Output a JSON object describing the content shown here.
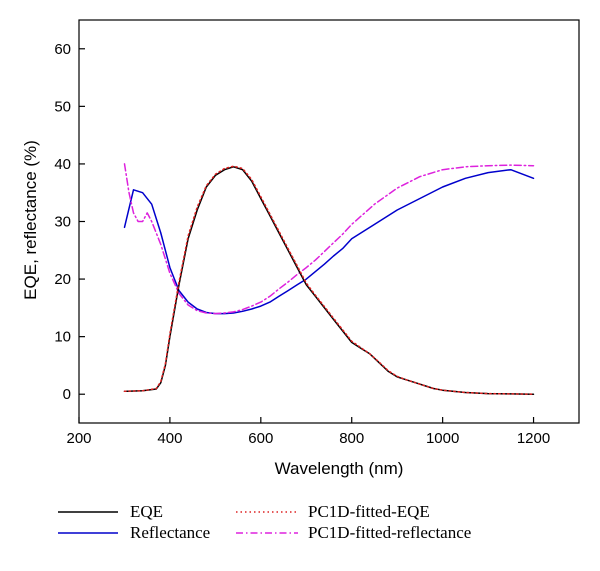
{
  "chart_data": {
    "type": "line",
    "title": "",
    "xlabel": "Wavelength (nm)",
    "ylabel": "EQE, reflectance (%)",
    "xlim": [
      200,
      1300
    ],
    "ylim": [
      -5,
      65
    ],
    "x_ticks": [
      200,
      400,
      600,
      800,
      1000,
      1200
    ],
    "y_ticks": [
      0,
      10,
      20,
      30,
      40,
      50,
      60
    ],
    "grid": false,
    "legend_position": "bottom",
    "series": [
      {
        "name": "EQE",
        "color": "#000000",
        "style": "solid",
        "x": [
          300,
          340,
          370,
          380,
          390,
          400,
          420,
          440,
          460,
          480,
          500,
          520,
          540,
          560,
          580,
          600,
          620,
          640,
          660,
          680,
          700,
          720,
          740,
          760,
          780,
          800,
          820,
          840,
          860,
          880,
          900,
          920,
          940,
          960,
          980,
          1000,
          1050,
          1100,
          1150,
          1200
        ],
        "y": [
          0.5,
          0.6,
          0.9,
          2,
          5,
          10,
          19,
          27,
          32,
          36,
          38,
          39,
          39.5,
          39,
          37,
          34,
          31,
          28,
          25,
          22,
          19,
          17,
          15,
          13,
          11,
          9,
          8,
          7,
          5.5,
          4,
          3,
          2.5,
          2,
          1.5,
          1,
          0.7,
          0.3,
          0.1,
          0.05,
          0
        ]
      },
      {
        "name": "Reflectance",
        "color": "#0000cc",
        "style": "solid",
        "x": [
          300,
          320,
          340,
          360,
          380,
          400,
          420,
          440,
          460,
          480,
          500,
          520,
          540,
          560,
          580,
          600,
          620,
          640,
          660,
          680,
          700,
          720,
          740,
          760,
          780,
          800,
          850,
          900,
          950,
          1000,
          1050,
          1100,
          1150,
          1200
        ],
        "y": [
          29,
          35.5,
          35,
          33,
          28,
          22,
          18,
          16,
          14.8,
          14.2,
          14,
          14,
          14.1,
          14.4,
          14.8,
          15.3,
          16,
          17,
          18,
          19,
          20,
          21.3,
          22.6,
          24,
          25.3,
          27,
          29.5,
          32,
          34,
          36,
          37.5,
          38.5,
          39,
          37.5
        ]
      },
      {
        "name": "PC1D-fitted-EQE",
        "color": "#dd2222",
        "style": "dotted",
        "x": [
          300,
          340,
          370,
          380,
          390,
          400,
          420,
          440,
          460,
          480,
          500,
          520,
          540,
          560,
          580,
          600,
          620,
          640,
          660,
          680,
          700,
          720,
          740,
          760,
          780,
          800,
          820,
          840,
          860,
          880,
          900,
          920,
          940,
          960,
          980,
          1000,
          1050,
          1100,
          1150,
          1200
        ],
        "y": [
          0.5,
          0.6,
          1,
          2.2,
          5.3,
          10.5,
          19.5,
          27.5,
          32.5,
          36.2,
          38.2,
          39.2,
          39.6,
          39.2,
          37.3,
          34.3,
          31.3,
          28.3,
          25.3,
          22.3,
          19.3,
          17.2,
          15.2,
          13.2,
          11.2,
          9.2,
          8.1,
          7,
          5.6,
          4.1,
          3.1,
          2.5,
          2,
          1.5,
          1,
          0.7,
          0.3,
          0.1,
          0.05,
          0
        ]
      },
      {
        "name": "PC1D-fitted-reflectance",
        "color": "#dd22dd",
        "style": "dashdot",
        "x": [
          300,
          310,
          320,
          330,
          340,
          350,
          360,
          380,
          400,
          420,
          440,
          460,
          480,
          500,
          520,
          540,
          560,
          580,
          600,
          620,
          640,
          660,
          680,
          700,
          720,
          740,
          760,
          780,
          800,
          850,
          900,
          950,
          1000,
          1050,
          1100,
          1150,
          1200
        ],
        "y": [
          40,
          35,
          31.5,
          30,
          30,
          31.5,
          30,
          26,
          21,
          17.5,
          15.5,
          14.5,
          14.1,
          14,
          14.1,
          14.3,
          14.7,
          15.3,
          16,
          17,
          18.3,
          19.5,
          20.8,
          22,
          23.3,
          24.8,
          26.3,
          27.8,
          29.5,
          33,
          35.8,
          37.8,
          39,
          39.5,
          39.7,
          39.8,
          39.7
        ]
      }
    ]
  }
}
